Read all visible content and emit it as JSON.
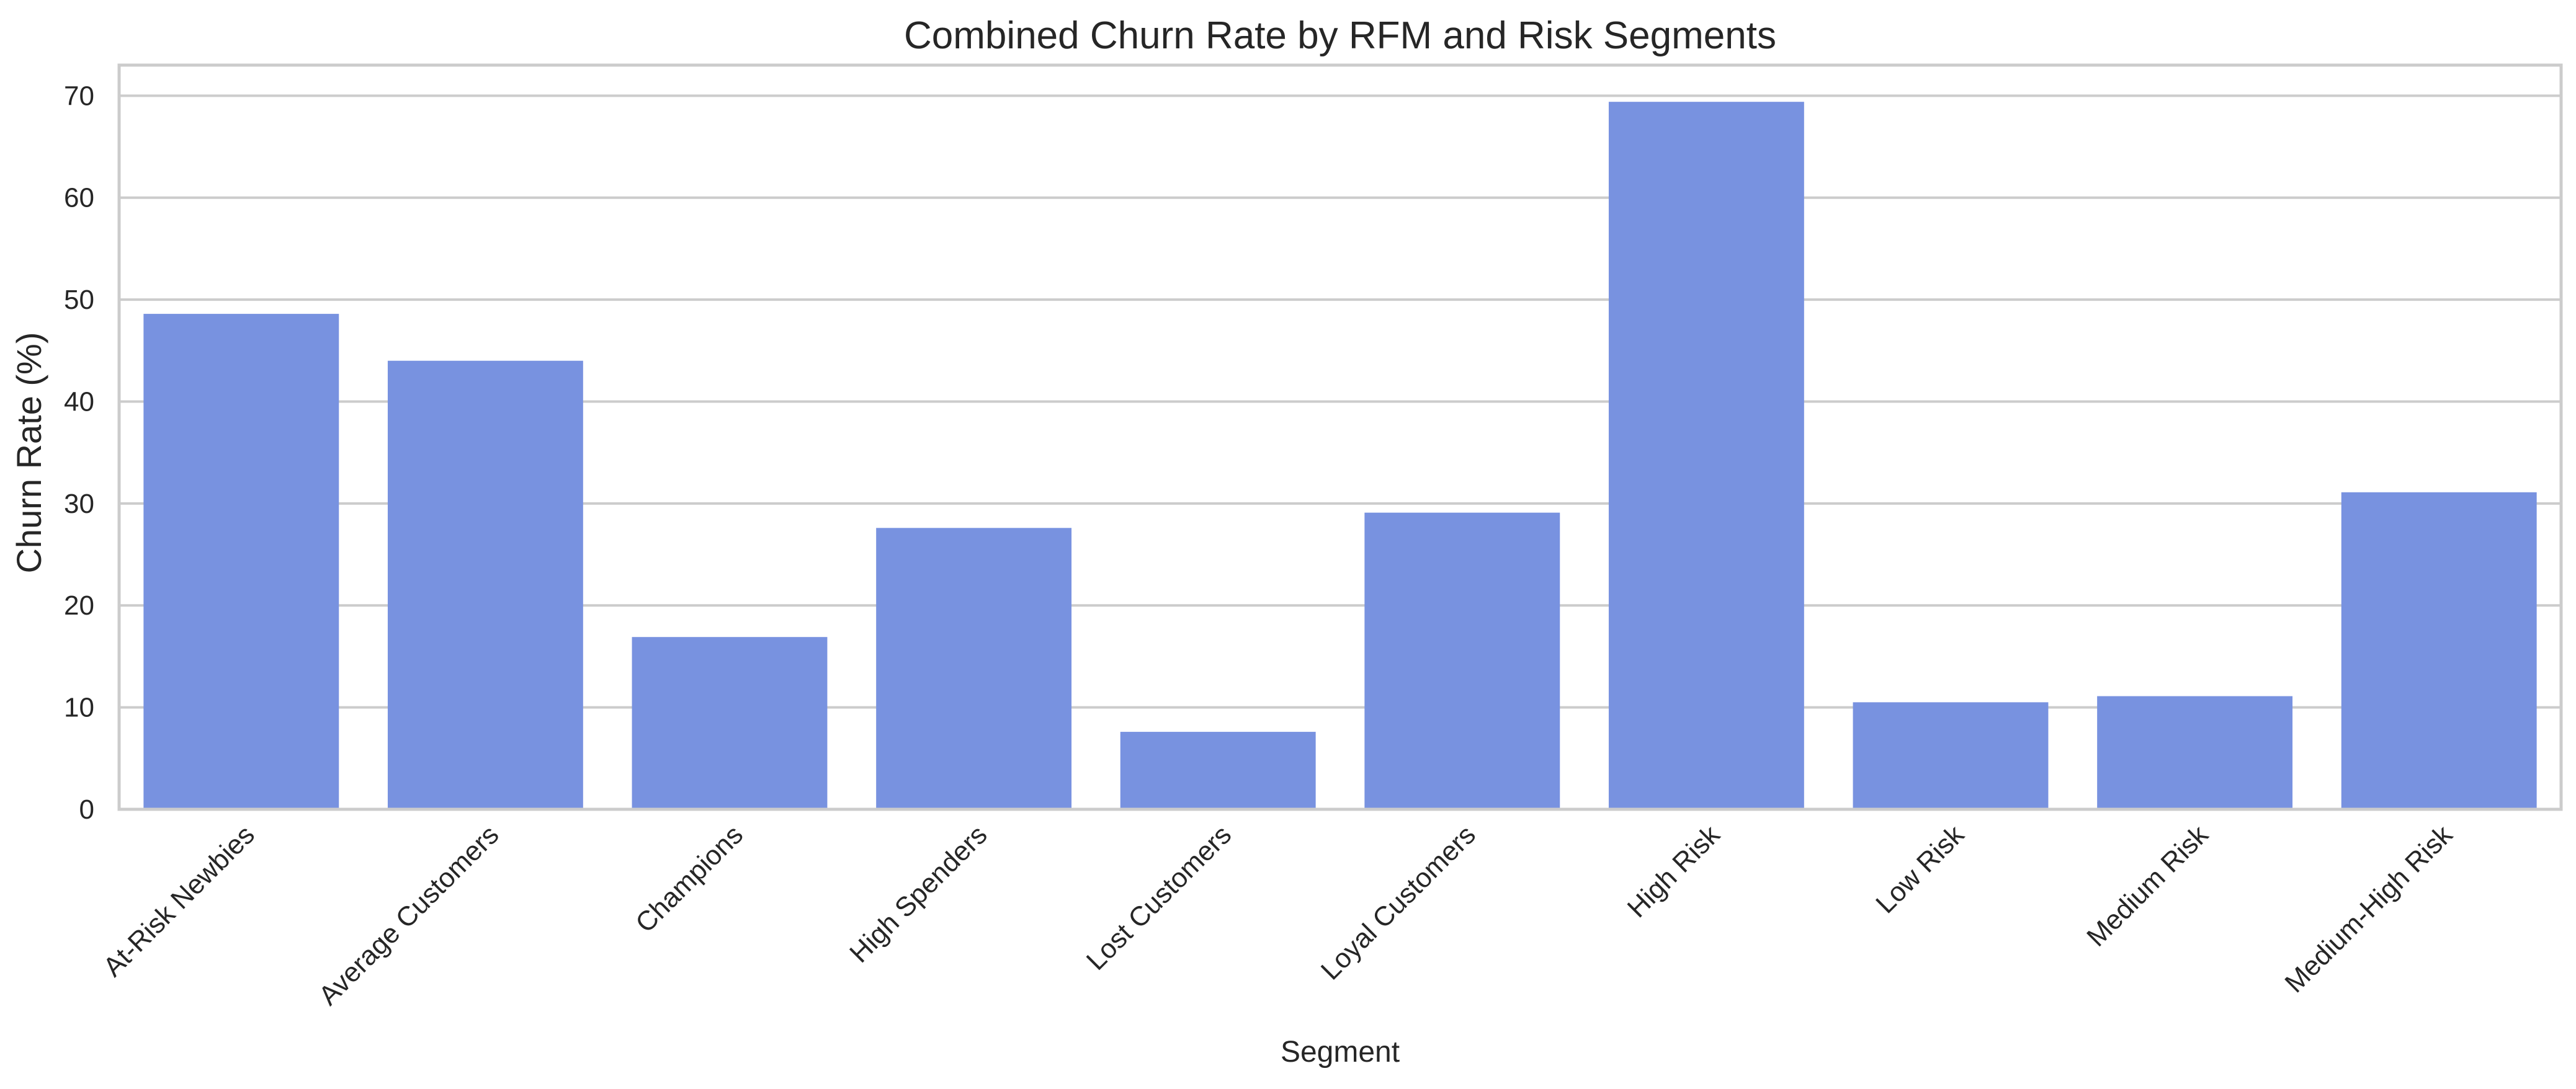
{
  "chart_data": {
    "type": "bar",
    "title": "Combined Churn Rate by RFM and Risk Segments",
    "xlabel": "Segment",
    "ylabel": "Churn Rate (%)",
    "categories": [
      "At-Risk Newbies",
      "Average Customers",
      "Champions",
      "High Spenders",
      "Lost Customers",
      "Loyal Customers",
      "High Risk",
      "Low Risk",
      "Medium Risk",
      "Medium-High Risk"
    ],
    "values": [
      48.6,
      44.0,
      16.9,
      27.6,
      7.6,
      29.1,
      69.4,
      10.5,
      11.1,
      31.1
    ],
    "ylim": [
      0,
      73
    ],
    "yticks": [
      0,
      10,
      20,
      30,
      40,
      50,
      60,
      70
    ],
    "grid": "horizontal",
    "bar_color": "#7892e0",
    "legend": "none"
  }
}
